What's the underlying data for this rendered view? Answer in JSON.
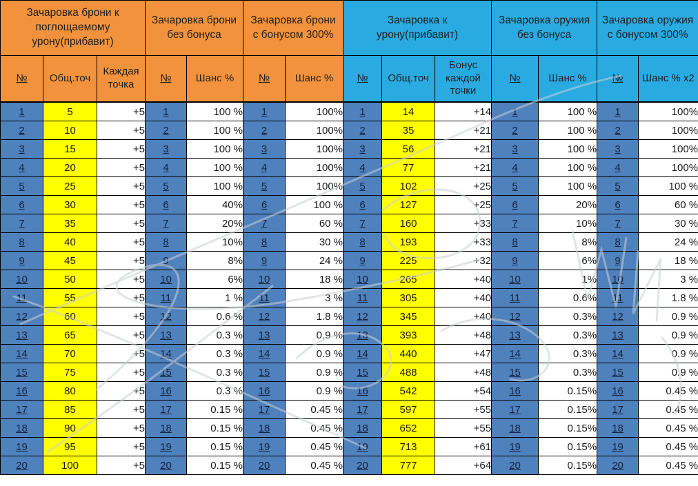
{
  "colors": {
    "orange_header": "#F2923C",
    "cyan_header": "#29ABE2",
    "row_number_cell": "#4F81BD",
    "points_cell": "#FFFF00",
    "grid_line": "#000000"
  },
  "groups": [
    {
      "title": "Зачаровка брони к поглощаемому урону(прибавит)",
      "theme": "orange",
      "columns": [
        "№",
        "Общ.точ",
        "Каждая точка"
      ]
    },
    {
      "title": "Зачаровка брони  без бонуса",
      "theme": "orange",
      "columns": [
        "№",
        "Шанс %"
      ]
    },
    {
      "title": "Зачаровка брони с бонусом 300%",
      "theme": "orange",
      "columns": [
        "№",
        "Шанс %"
      ]
    },
    {
      "title": "Зачаровка к урону(прибавит)",
      "theme": "blue",
      "columns": [
        "№",
        "Общ.точ",
        "Бонус каждой точки"
      ]
    },
    {
      "title": "Зачаровка оружия  без бонуса",
      "theme": "blue",
      "columns": [
        "№",
        "Шанс %"
      ]
    },
    {
      "title": "Зачаровка оружия  с бонусом 300%",
      "theme": "blue",
      "columns": [
        "№",
        "Шанс % x2"
      ]
    }
  ],
  "rows": [
    [
      "1",
      "5",
      "+5",
      "1",
      "100 %",
      "1",
      "100%",
      "1",
      "14",
      "+14",
      "1",
      "100 %",
      "1",
      "100%"
    ],
    [
      "2",
      "10",
      "+5",
      "2",
      "100 %",
      "2",
      "100%",
      "2",
      "35",
      "+21",
      "2",
      "100 %",
      "2",
      "100%"
    ],
    [
      "3",
      "15",
      "+5",
      "3",
      "100 %",
      "3",
      "100%",
      "3",
      "56",
      "+21",
      "3",
      "100 %",
      "3",
      "100%"
    ],
    [
      "4",
      "20",
      "+5",
      "4",
      "100 %",
      "4",
      "100%",
      "4",
      "77",
      "+21",
      "4",
      "100 %",
      "4",
      "100%"
    ],
    [
      "5",
      "25",
      "+5",
      "5",
      "100 %",
      "5",
      "100%",
      "5",
      "102",
      "+25",
      "5",
      "100 %",
      "5",
      "100 %"
    ],
    [
      "6",
      "30",
      "+5",
      "6",
      "40%",
      "6",
      "100 %",
      "6",
      "127",
      "+25",
      "6",
      "20%",
      "6",
      "60 %"
    ],
    [
      "7",
      "35",
      "+5",
      "7",
      "20%",
      "7",
      "60 %",
      "7",
      "160",
      "+33",
      "7",
      "10%",
      "7",
      "30 %"
    ],
    [
      "8",
      "40",
      "+5",
      "8",
      "10%",
      "8",
      "30 %",
      "8",
      "193",
      "+33",
      "8",
      "8%",
      "8",
      "24 %"
    ],
    [
      "9",
      "45",
      "+5",
      "9",
      "8%",
      "9",
      "24 %",
      "9",
      "225",
      "+32",
      "9",
      "6%",
      "9",
      "18 %"
    ],
    [
      "10",
      "50",
      "+5",
      "10",
      "6%",
      "10",
      "18 %",
      "10",
      "265",
      "+40",
      "10",
      "1%",
      "10",
      "3 %"
    ],
    [
      "11",
      "55",
      "+5",
      "11",
      "1 %",
      "11",
      "3 %",
      "11",
      "305",
      "+40",
      "11",
      "0.6%",
      "11",
      "1.8 %"
    ],
    [
      "12",
      "60",
      "+5",
      "12",
      "0.6 %",
      "12",
      "1.8 %",
      "12",
      "345",
      "+40",
      "12",
      "0.3%",
      "12",
      "0.9 %"
    ],
    [
      "13",
      "65",
      "+5",
      "13",
      "0.3 %",
      "13",
      "0.9 %",
      "13",
      "393",
      "+48",
      "13",
      "0.3%",
      "13",
      "0.9 %"
    ],
    [
      "14",
      "70",
      "+5",
      "14",
      "0.3 %",
      "14",
      "0.9 %",
      "14",
      "440",
      "+47",
      "14",
      "0.3%",
      "14",
      "0.9 %"
    ],
    [
      "15",
      "75",
      "+5",
      "15",
      "0.3 %",
      "15",
      "0.9 %",
      "15",
      "488",
      "+48",
      "15",
      "0.3%",
      "15",
      "0.9 %"
    ],
    [
      "16",
      "80",
      "+5",
      "16",
      "0.3 %",
      "16",
      "0.9 %",
      "16",
      "542",
      "+54",
      "16",
      "0.15%",
      "16",
      "0.45 %"
    ],
    [
      "17",
      "85",
      "+5",
      "17",
      "0.15 %",
      "17",
      "0.45 %",
      "17",
      "597",
      "+55",
      "17",
      "0.15%",
      "17",
      "0.45 %"
    ],
    [
      "18",
      "90",
      "+5",
      "18",
      "0.15 %",
      "18",
      "0.45 %",
      "18",
      "652",
      "+55",
      "18",
      "0.15%",
      "18",
      "0.45 %"
    ],
    [
      "19",
      "95",
      "+5",
      "19",
      "0.15 %",
      "19",
      "0.45 %",
      "19",
      "713",
      "+61",
      "19",
      "0.15%",
      "19",
      "0.45 %"
    ],
    [
      "20",
      "100",
      "+5",
      "20",
      "0.15 %",
      "20",
      "0.45 %",
      "20",
      "777",
      "+64",
      "20",
      "0.15%",
      "20",
      "0.45 %"
    ]
  ]
}
